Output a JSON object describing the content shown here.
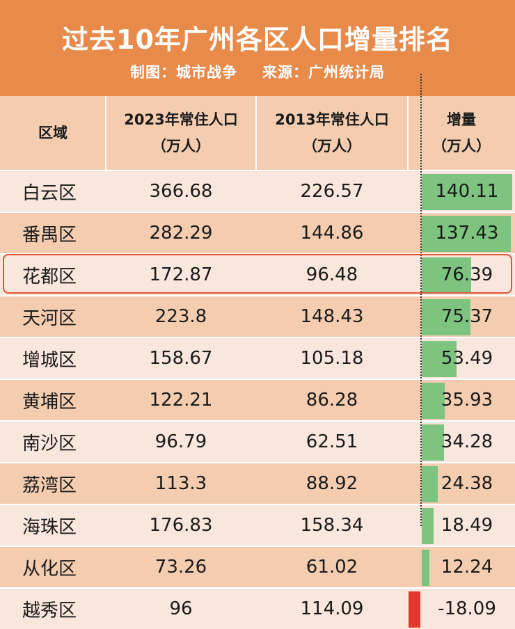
{
  "header": {
    "title": "过去10年广州各区人口增量排名",
    "credit_made": "制图：城市战争",
    "credit_source": "来源：广州统计局"
  },
  "columns": {
    "district": "区域",
    "pop2023_line1": "2023年常住人口",
    "pop2023_line2": "（万人）",
    "pop2013_line1": "2013年常住人口",
    "pop2013_line2": "（万人）",
    "increase_line1": "增量",
    "increase_line2": "（万人）"
  },
  "colors": {
    "header_bg": "#e88a4a",
    "row_light": "#f9e6dc",
    "row_dark": "#f4cdb0",
    "bar_positive": "#7cc47f",
    "bar_negative": "#e3392d",
    "highlight_border": "#e0553a"
  },
  "chart_data": {
    "type": "table",
    "title": "过去10年广州各区人口增量排名",
    "columns": [
      "区域",
      "2023年常住人口（万人）",
      "2013年常住人口（万人）",
      "增量（万人）"
    ],
    "rows": [
      {
        "district": "白云区",
        "pop2023": "366.68",
        "pop2013": "226.57",
        "increase": "140.11",
        "increase_value": 140.11
      },
      {
        "district": "番禺区",
        "pop2023": "282.29",
        "pop2013": "144.86",
        "increase": "137.43",
        "increase_value": 137.43
      },
      {
        "district": "花都区",
        "pop2023": "172.87",
        "pop2013": "96.48",
        "increase": "76.39",
        "increase_value": 76.39,
        "highlighted": true
      },
      {
        "district": "天河区",
        "pop2023": "223.8",
        "pop2013": "148.43",
        "increase": "75.37",
        "increase_value": 75.37
      },
      {
        "district": "增城区",
        "pop2023": "158.67",
        "pop2013": "105.18",
        "increase": "53.49",
        "increase_value": 53.49
      },
      {
        "district": "黄埔区",
        "pop2023": "122.21",
        "pop2013": "86.28",
        "increase": "35.93",
        "increase_value": 35.93
      },
      {
        "district": "南沙区",
        "pop2023": "96.79",
        "pop2013": "62.51",
        "increase": "34.28",
        "increase_value": 34.28
      },
      {
        "district": "荔湾区",
        "pop2023": "113.3",
        "pop2013": "88.92",
        "increase": "24.38",
        "increase_value": 24.38
      },
      {
        "district": "海珠区",
        "pop2023": "176.83",
        "pop2013": "158.34",
        "increase": "18.49",
        "increase_value": 18.49
      },
      {
        "district": "从化区",
        "pop2023": "73.26",
        "pop2013": "61.02",
        "increase": "12.24",
        "increase_value": 12.24
      },
      {
        "district": "越秀区",
        "pop2023": "96",
        "pop2013": "114.09",
        "increase": "-18.09",
        "increase_value": -18.09
      }
    ],
    "bar_column": "增量（万人）",
    "bar_range": [
      -18.09,
      140.11
    ]
  }
}
